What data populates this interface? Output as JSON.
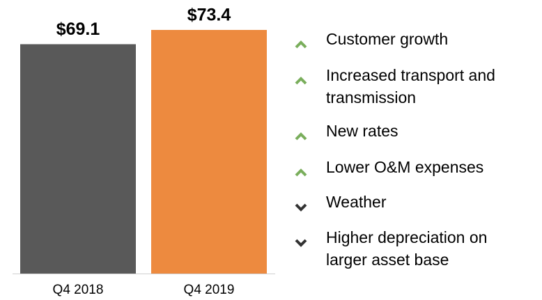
{
  "chart_data": {
    "type": "bar",
    "categories": [
      "Q4 2018",
      "Q4 2019"
    ],
    "values": [
      69.1,
      73.4
    ],
    "value_labels": [
      "$69.1",
      "$73.4"
    ],
    "colors": [
      "#595959",
      "#ed8a3f"
    ]
  },
  "bullets": [
    {
      "direction": "up",
      "lines": [
        "Customer growth"
      ]
    },
    {
      "direction": "up",
      "lines": [
        "Increased transport and",
        "transmission"
      ]
    },
    {
      "direction": "up",
      "lines": [
        "New rates"
      ]
    },
    {
      "direction": "up",
      "lines": [
        "Lower O&M expenses"
      ]
    },
    {
      "direction": "down",
      "lines": [
        "Weather"
      ]
    },
    {
      "direction": "down",
      "lines": [
        "Higher depreciation on",
        "larger asset base"
      ]
    }
  ]
}
